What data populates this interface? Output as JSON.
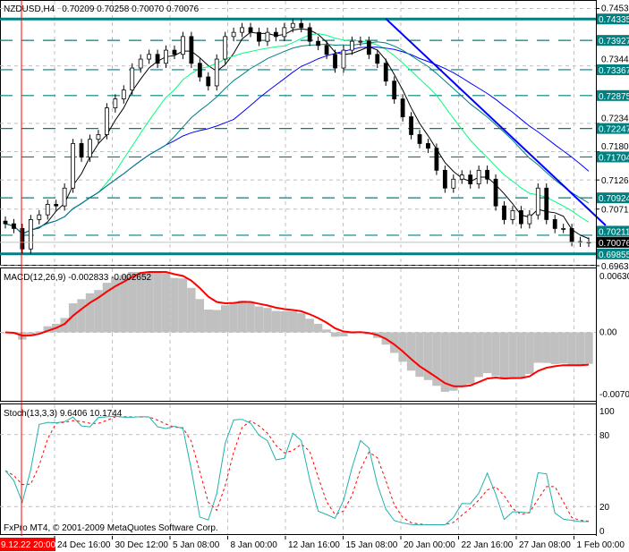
{
  "window": {
    "symbol_title": "NZDUSD,H4",
    "ohlc_readout": "0.70209 0.70258 0.70070 0.70076",
    "copyright": "FxPro MT4, © 2001-2009 MetaQuotes Software Corp."
  },
  "colors": {
    "bull_bear_candle": "#000000",
    "level_line": "#008080",
    "trendline": "#0000ff",
    "macd_hist": "#c0c0c0",
    "macd_signal": "#ff0000",
    "stoch_main": "#20b2aa",
    "stoch_signal": "#ff0000",
    "cursor_line": "#ff0000",
    "current_price_bg": "#000000"
  },
  "chart_data": [
    {
      "type": "candlestick",
      "title": "NZDUSD,H4",
      "ylim": [
        0.6963,
        0.7468
      ],
      "grid": true,
      "closes": [
        0.7043,
        0.7034,
        0.6995,
        0.7051,
        0.706,
        0.708,
        0.7077,
        0.7111,
        0.7196,
        0.717,
        0.7204,
        0.7213,
        0.7264,
        0.7281,
        0.7298,
        0.734,
        0.7357,
        0.7366,
        0.7349,
        0.7374,
        0.7366,
        0.74,
        0.7349,
        0.7323,
        0.7306,
        0.7357,
        0.74,
        0.7408,
        0.7417,
        0.7408,
        0.7391,
        0.7408,
        0.74,
        0.7417,
        0.7425,
        0.7417,
        0.7391,
        0.7383,
        0.7366,
        0.734,
        0.7374,
        0.7391,
        0.7391,
        0.7366,
        0.7349,
        0.7315,
        0.7281,
        0.7247,
        0.7213,
        0.7196,
        0.7187,
        0.7145,
        0.7111,
        0.7128,
        0.7136,
        0.7119,
        0.7145,
        0.7128,
        0.7077,
        0.7051,
        0.7068,
        0.7043,
        0.706,
        0.7111,
        0.7051,
        0.7034,
        0.7034,
        0.7009,
        0.7008,
        0.70076
      ],
      "price_axis_ticks": [
        "0.74535",
        "0.73440",
        "0.72345",
        "0.71805",
        "0.71265",
        "0.70710",
        "0.69630"
      ],
      "levels": [
        {
          "label": "0.74335",
          "value": 0.74335,
          "style": "solid"
        },
        {
          "label": "0.73927",
          "value": 0.73927,
          "style": "dashed"
        },
        {
          "label": "0.73367",
          "value": 0.73367,
          "style": "dashed"
        },
        {
          "label": "0.72875",
          "value": 0.72875,
          "style": "dashed"
        },
        {
          "label": "0.72247",
          "value": 0.72247,
          "style": "dashed"
        },
        {
          "label": "0.71704",
          "value": 0.71704,
          "style": "dashed"
        },
        {
          "label": "0.70924",
          "value": 0.70924,
          "style": "dashed"
        },
        {
          "label": "0.70211",
          "value": 0.70211,
          "style": "dashed"
        },
        {
          "label": "0.69855",
          "value": 0.69855,
          "style": "solid"
        }
      ],
      "current_price": {
        "label": "0.70076",
        "value": 0.70076
      },
      "trendlines": [
        {
          "from": [
            45,
            0.7434
          ],
          "to": [
            71,
            0.704
          ]
        }
      ],
      "time_labels": [
        "24 Dec 16:00",
        "30 Dec 12:00",
        "5 Jan 08:00",
        "8 Jan 00:00",
        "12 Jan 16:00",
        "15 Jan 08:00",
        "20 Jan 00:00",
        "22 Jan 16:00",
        "27 Jan 08:00",
        "1 Feb 00:00"
      ],
      "cursor_time_label": "9.12.22 20:00"
    },
    {
      "type": "bar+line",
      "title": "MACD(12,26,9) -0.002833 -0.002652",
      "ylim": [
        -0.00705,
        0.0063
      ],
      "ticks": [
        "0.00630",
        "0.00",
        "-0.00705"
      ]
    },
    {
      "type": "line",
      "title": "Stoch(13,3,3) 9.6406 10.1744",
      "ylim": [
        0,
        100
      ],
      "ticks": [
        "100",
        "80",
        "20",
        "0"
      ]
    }
  ]
}
